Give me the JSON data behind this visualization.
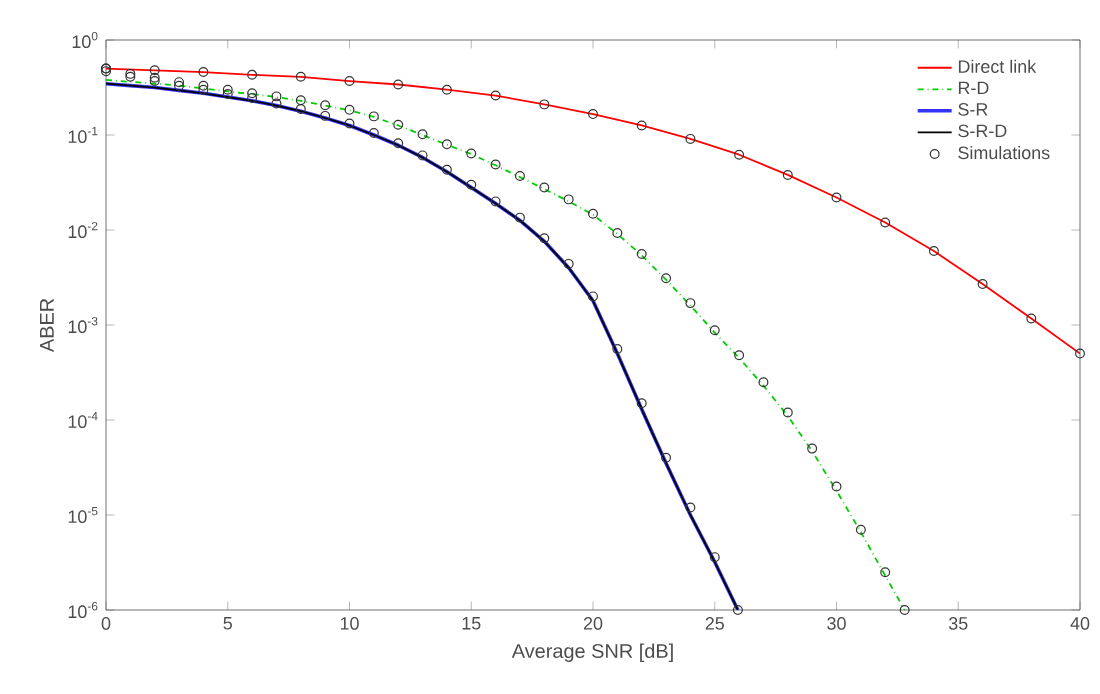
{
  "chart_data": {
    "type": "line",
    "xlabel": "Average SNR [dB]",
    "ylabel": "ABER",
    "log": "y",
    "xlim": [
      0,
      40
    ],
    "ylim": [
      1e-06,
      1
    ],
    "xticks": [
      0,
      5,
      10,
      15,
      20,
      25,
      30,
      35,
      40
    ],
    "yticks": [
      {
        "value": 1e-06,
        "label": "10$^{-6}$"
      },
      {
        "value": 1e-05,
        "label": "10$^{-5}$"
      },
      {
        "value": 0.0001,
        "label": "10$^{-4}$"
      },
      {
        "value": 0.001,
        "label": "10$^{-3}$"
      },
      {
        "value": 0.01,
        "label": "10$^{-2}$"
      },
      {
        "value": 0.1,
        "label": "10$^{-1}$"
      },
      {
        "value": 1,
        "label": "10$^{0}$"
      }
    ],
    "legend": "top right",
    "grid": false,
    "series": [
      {
        "name": "Direct link",
        "color": "#ff0000",
        "line_style": "solid",
        "x": [
          0,
          2,
          4,
          6,
          8,
          10,
          12,
          14,
          16,
          18,
          20,
          22,
          24,
          26,
          28,
          30,
          32,
          34,
          36,
          38,
          40
        ],
        "values": [
          0.5,
          0.48,
          0.46,
          0.43,
          0.41,
          0.37,
          0.34,
          0.3,
          0.26,
          0.21,
          0.166,
          0.126,
          0.091,
          0.062,
          0.038,
          0.022,
          0.012,
          0.006,
          0.0027,
          0.00117,
          0.0005
        ]
      },
      {
        "name": "R-D",
        "color": "#00cc00",
        "line_style": "dashdot",
        "x": [
          0,
          1,
          2,
          3,
          4,
          5,
          6,
          7,
          8,
          9,
          10,
          11,
          12,
          13,
          14,
          15,
          16,
          17,
          18,
          19,
          20,
          21,
          22,
          23,
          24,
          25,
          26,
          27,
          28,
          29,
          30,
          31,
          32,
          32.8
        ],
        "values": [
          0.38,
          0.363,
          0.347,
          0.331,
          0.309,
          0.288,
          0.269,
          0.251,
          0.229,
          0.204,
          0.182,
          0.155,
          0.126,
          0.1,
          0.079,
          0.063,
          0.048,
          0.036,
          0.027,
          0.02,
          0.0145,
          0.0091,
          0.0054,
          0.003,
          0.0016,
          0.00083,
          0.00045,
          0.00023,
          0.00011,
          4.7e-05,
          1.8e-05,
          6.6e-06,
          2.3e-06,
          1e-06
        ]
      },
      {
        "name": "S-R",
        "color": "#3333ff",
        "line_style": "solid",
        "x": [
          0,
          1,
          2,
          3,
          4,
          5,
          6,
          7,
          8,
          9,
          10,
          11,
          12,
          13,
          14,
          15,
          16,
          17,
          18,
          19,
          20,
          21,
          22,
          23,
          24,
          25,
          25.95
        ],
        "values": [
          0.347,
          0.331,
          0.316,
          0.295,
          0.275,
          0.251,
          0.229,
          0.204,
          0.178,
          0.151,
          0.126,
          0.1,
          0.078,
          0.058,
          0.041,
          0.028,
          0.019,
          0.0126,
          0.0076,
          0.004,
          0.0018,
          0.0005,
          0.00013,
          3.5e-05,
          1e-05,
          3.2e-06,
          1e-06
        ]
      },
      {
        "name": "S-R-D",
        "color": "#000000",
        "line_style": "solid",
        "x": [
          0,
          1,
          2,
          3,
          4,
          5,
          6,
          7,
          8,
          9,
          10,
          11,
          12,
          13,
          14,
          15,
          16,
          17,
          18,
          19,
          20,
          21,
          22,
          23,
          24,
          25,
          25.95
        ],
        "values": [
          0.347,
          0.331,
          0.316,
          0.295,
          0.275,
          0.251,
          0.229,
          0.204,
          0.178,
          0.151,
          0.126,
          0.1,
          0.078,
          0.058,
          0.041,
          0.028,
          0.019,
          0.0126,
          0.0076,
          0.004,
          0.0018,
          0.0005,
          0.00013,
          3.5e-05,
          1e-05,
          3.2e-06,
          1e-06
        ]
      },
      {
        "name": "Simulations",
        "type": "scatter",
        "color": "#333333",
        "marker": "circle",
        "x": [
          0,
          2,
          4,
          6,
          8,
          10,
          12,
          14,
          16,
          18,
          20,
          22,
          24,
          26,
          28,
          30,
          32,
          34,
          36,
          38,
          40,
          0,
          1,
          2,
          3,
          4,
          5,
          6,
          7,
          8,
          9,
          10,
          11,
          12,
          13,
          14,
          15,
          16,
          17,
          18,
          19,
          20,
          21,
          22,
          23,
          24,
          25,
          26,
          27,
          28,
          29,
          30,
          31,
          32,
          32.8,
          0,
          1,
          2,
          3,
          4,
          5,
          6,
          7,
          8,
          9,
          10,
          11,
          12,
          13,
          14,
          15,
          16,
          17,
          18,
          19,
          20,
          21,
          22,
          23,
          24,
          25,
          25.95
        ],
        "values": [
          0.5,
          0.48,
          0.46,
          0.43,
          0.41,
          0.37,
          0.34,
          0.3,
          0.26,
          0.21,
          0.166,
          0.126,
          0.091,
          0.062,
          0.038,
          0.022,
          0.012,
          0.006,
          0.0027,
          0.00117,
          0.0005,
          0.5,
          0.44,
          0.4,
          0.36,
          0.33,
          0.3,
          0.275,
          0.255,
          0.232,
          0.206,
          0.184,
          0.157,
          0.128,
          0.102,
          0.08,
          0.064,
          0.049,
          0.037,
          0.028,
          0.021,
          0.0148,
          0.0093,
          0.0056,
          0.0031,
          0.0017,
          0.00088,
          0.00048,
          0.00025,
          0.00012,
          5e-05,
          2e-05,
          7e-06,
          2.5e-06,
          1e-06,
          0.47,
          0.41,
          0.37,
          0.33,
          0.3,
          0.27,
          0.245,
          0.215,
          0.188,
          0.159,
          0.132,
          0.105,
          0.082,
          0.061,
          0.043,
          0.03,
          0.02,
          0.0135,
          0.0082,
          0.0044,
          0.002,
          0.00056,
          0.00015,
          4e-05,
          1.2e-05,
          3.6e-06,
          1e-06
        ]
      }
    ]
  }
}
